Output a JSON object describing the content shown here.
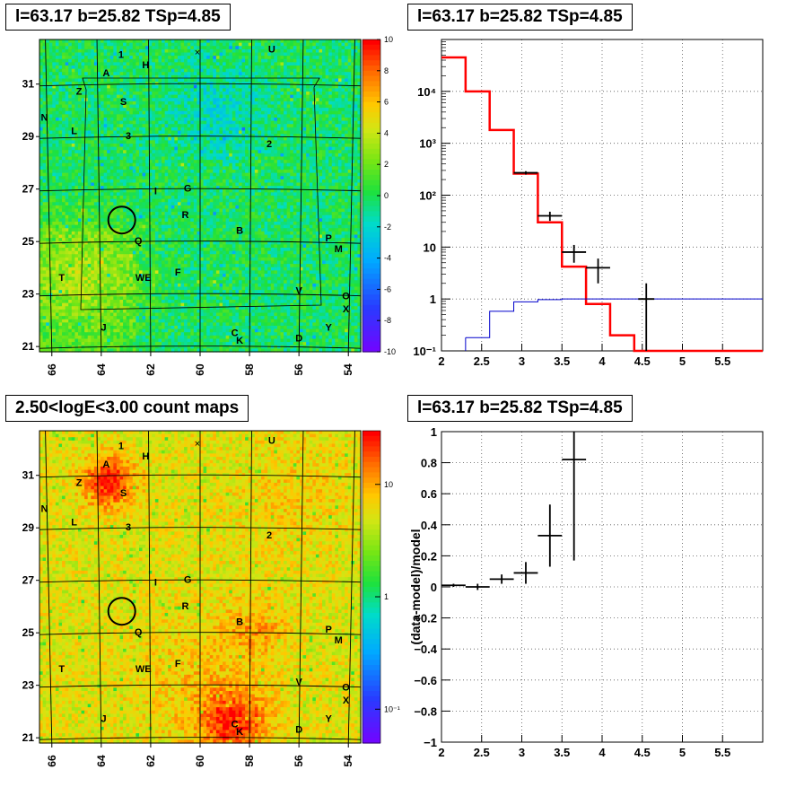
{
  "panels": {
    "map_top": {
      "title": "l=63.17 b=25.82 TSp=4.85",
      "x_ticks": [
        "66",
        "64",
        "62",
        "60",
        "58",
        "56",
        "54"
      ],
      "y_ticks": [
        "31",
        "29",
        "27",
        "25",
        "23",
        "21"
      ],
      "colorbar_ticks": [
        "10",
        "8",
        "6",
        "4",
        "2",
        "0",
        "-2",
        "-4",
        "-6",
        "-8",
        "-10"
      ]
    },
    "spectrum": {
      "title": "l=63.17 b=25.82 TSp=4.85",
      "x_ticks": [
        "2",
        "2.5",
        "3",
        "3.5",
        "4",
        "4.5",
        "5",
        "5.5"
      ],
      "y_ticks": [
        "10⁴",
        "10³",
        "10²",
        "10",
        "1",
        "10⁻¹"
      ]
    },
    "map_bottom": {
      "title": "2.50<logE<3.00 count maps",
      "x_ticks": [
        "66",
        "64",
        "62",
        "60",
        "58",
        "56",
        "54"
      ],
      "y_ticks": [
        "31",
        "29",
        "27",
        "25",
        "23",
        "21"
      ],
      "colorbar_ticks": [
        "10",
        "1",
        "10⁻¹"
      ]
    },
    "residual": {
      "title": "l=63.17 b=25.82 TSp=4.85",
      "ylabel": "(data-model)/model",
      "x_ticks": [
        "2",
        "2.5",
        "3",
        "3.5",
        "4",
        "4.5",
        "5",
        "5.5"
      ],
      "y_ticks": [
        "1",
        "0.8",
        "0.6",
        "0.4",
        "0.2",
        "0",
        "−0.2",
        "−0.4",
        "−0.6",
        "−0.8",
        "−1"
      ]
    }
  },
  "source_labels": [
    "1",
    "H",
    "U",
    "A",
    "Z",
    "S",
    "N",
    "L",
    "3",
    "2",
    "I",
    "G",
    "R",
    "B",
    "Q",
    "P",
    "M",
    "T",
    "WE",
    "F",
    "V",
    "O",
    "X",
    "J",
    "Y",
    "C",
    "K",
    "D"
  ],
  "chart_data": [
    {
      "type": "heatmap",
      "title": "l=63.17 b=25.82 TSp=4.85",
      "xlim": [
        66.5,
        53.5
      ],
      "ylim": [
        20.8,
        32.7
      ],
      "colorbar_range": [
        -10,
        10
      ],
      "colors": {
        "low": "#7a00ff",
        "mid": "#18e018",
        "high": "#ff0000"
      }
    },
    {
      "type": "line",
      "title": "l=63.17 b=25.82 TSp=4.85",
      "xlim": [
        2,
        6
      ],
      "ylim": [
        0.1,
        100000
      ],
      "yscale": "log",
      "grid": true,
      "series": [
        {
          "style": "step",
          "color": "#ff0000",
          "bins": [
            [
              2.0,
              2.3,
              45000
            ],
            [
              2.3,
              2.6,
              10000
            ],
            [
              2.6,
              2.9,
              1800
            ],
            [
              2.9,
              3.2,
              260
            ],
            [
              3.2,
              3.5,
              30
            ],
            [
              3.5,
              3.8,
              4.2
            ],
            [
              3.8,
              4.1,
              0.8
            ],
            [
              4.1,
              4.4,
              0.2
            ],
            [
              4.4,
              6.0,
              0.1
            ]
          ]
        },
        {
          "style": "step",
          "color": "#0000cc",
          "bins": [
            [
              2.3,
              2.6,
              0.18
            ],
            [
              2.6,
              2.9,
              0.58
            ],
            [
              2.9,
              3.2,
              0.88
            ],
            [
              3.2,
              3.5,
              0.97
            ],
            [
              3.5,
              6.0,
              1.0
            ]
          ]
        },
        {
          "style": "errorbar",
          "color": "#000000",
          "points": [
            {
              "x": 3.05,
              "y": 270,
              "xerr": 0.15,
              "ylo": 250,
              "yhi": 290
            },
            {
              "x": 3.35,
              "y": 40,
              "xerr": 0.15,
              "ylo": 32,
              "yhi": 48
            },
            {
              "x": 3.65,
              "y": 8,
              "xerr": 0.15,
              "ylo": 5,
              "yhi": 11
            },
            {
              "x": 3.95,
              "y": 4,
              "xerr": 0.15,
              "ylo": 2,
              "yhi": 6
            },
            {
              "x": 4.55,
              "y": 1,
              "xerr": 0.1,
              "ylo": 0.1,
              "yhi": 2
            }
          ]
        }
      ]
    },
    {
      "type": "heatmap",
      "title": "2.50<logE<3.00 count maps",
      "xlim": [
        66.5,
        53.5
      ],
      "ylim": [
        20.8,
        32.7
      ],
      "colorbar_range": [
        0.05,
        30
      ],
      "colorbar_scale": "log",
      "colors": {
        "low": "#7a00ff",
        "mid": "#ffe000",
        "high": "#ff0000"
      }
    },
    {
      "type": "scatter",
      "title": "l=63.17 b=25.82 TSp=4.85",
      "ylabel": "(data-model)/model",
      "xlim": [
        2,
        6
      ],
      "ylim": [
        -1,
        1
      ],
      "grid": true,
      "points": [
        {
          "x": 2.15,
          "y": 0.01,
          "xerr": 0.15,
          "yerr": 0.01
        },
        {
          "x": 2.45,
          "y": 0.0,
          "xerr": 0.15,
          "yerr": 0.02
        },
        {
          "x": 2.75,
          "y": 0.05,
          "xerr": 0.15,
          "yerr": 0.03
        },
        {
          "x": 3.05,
          "y": 0.09,
          "xerr": 0.15,
          "yerr": 0.07
        },
        {
          "x": 3.35,
          "y": 0.33,
          "xerr": 0.15,
          "yerr": 0.2
        },
        {
          "x": 3.65,
          "y": 0.82,
          "xerr": 0.15,
          "yerr": 0.65
        }
      ]
    }
  ]
}
